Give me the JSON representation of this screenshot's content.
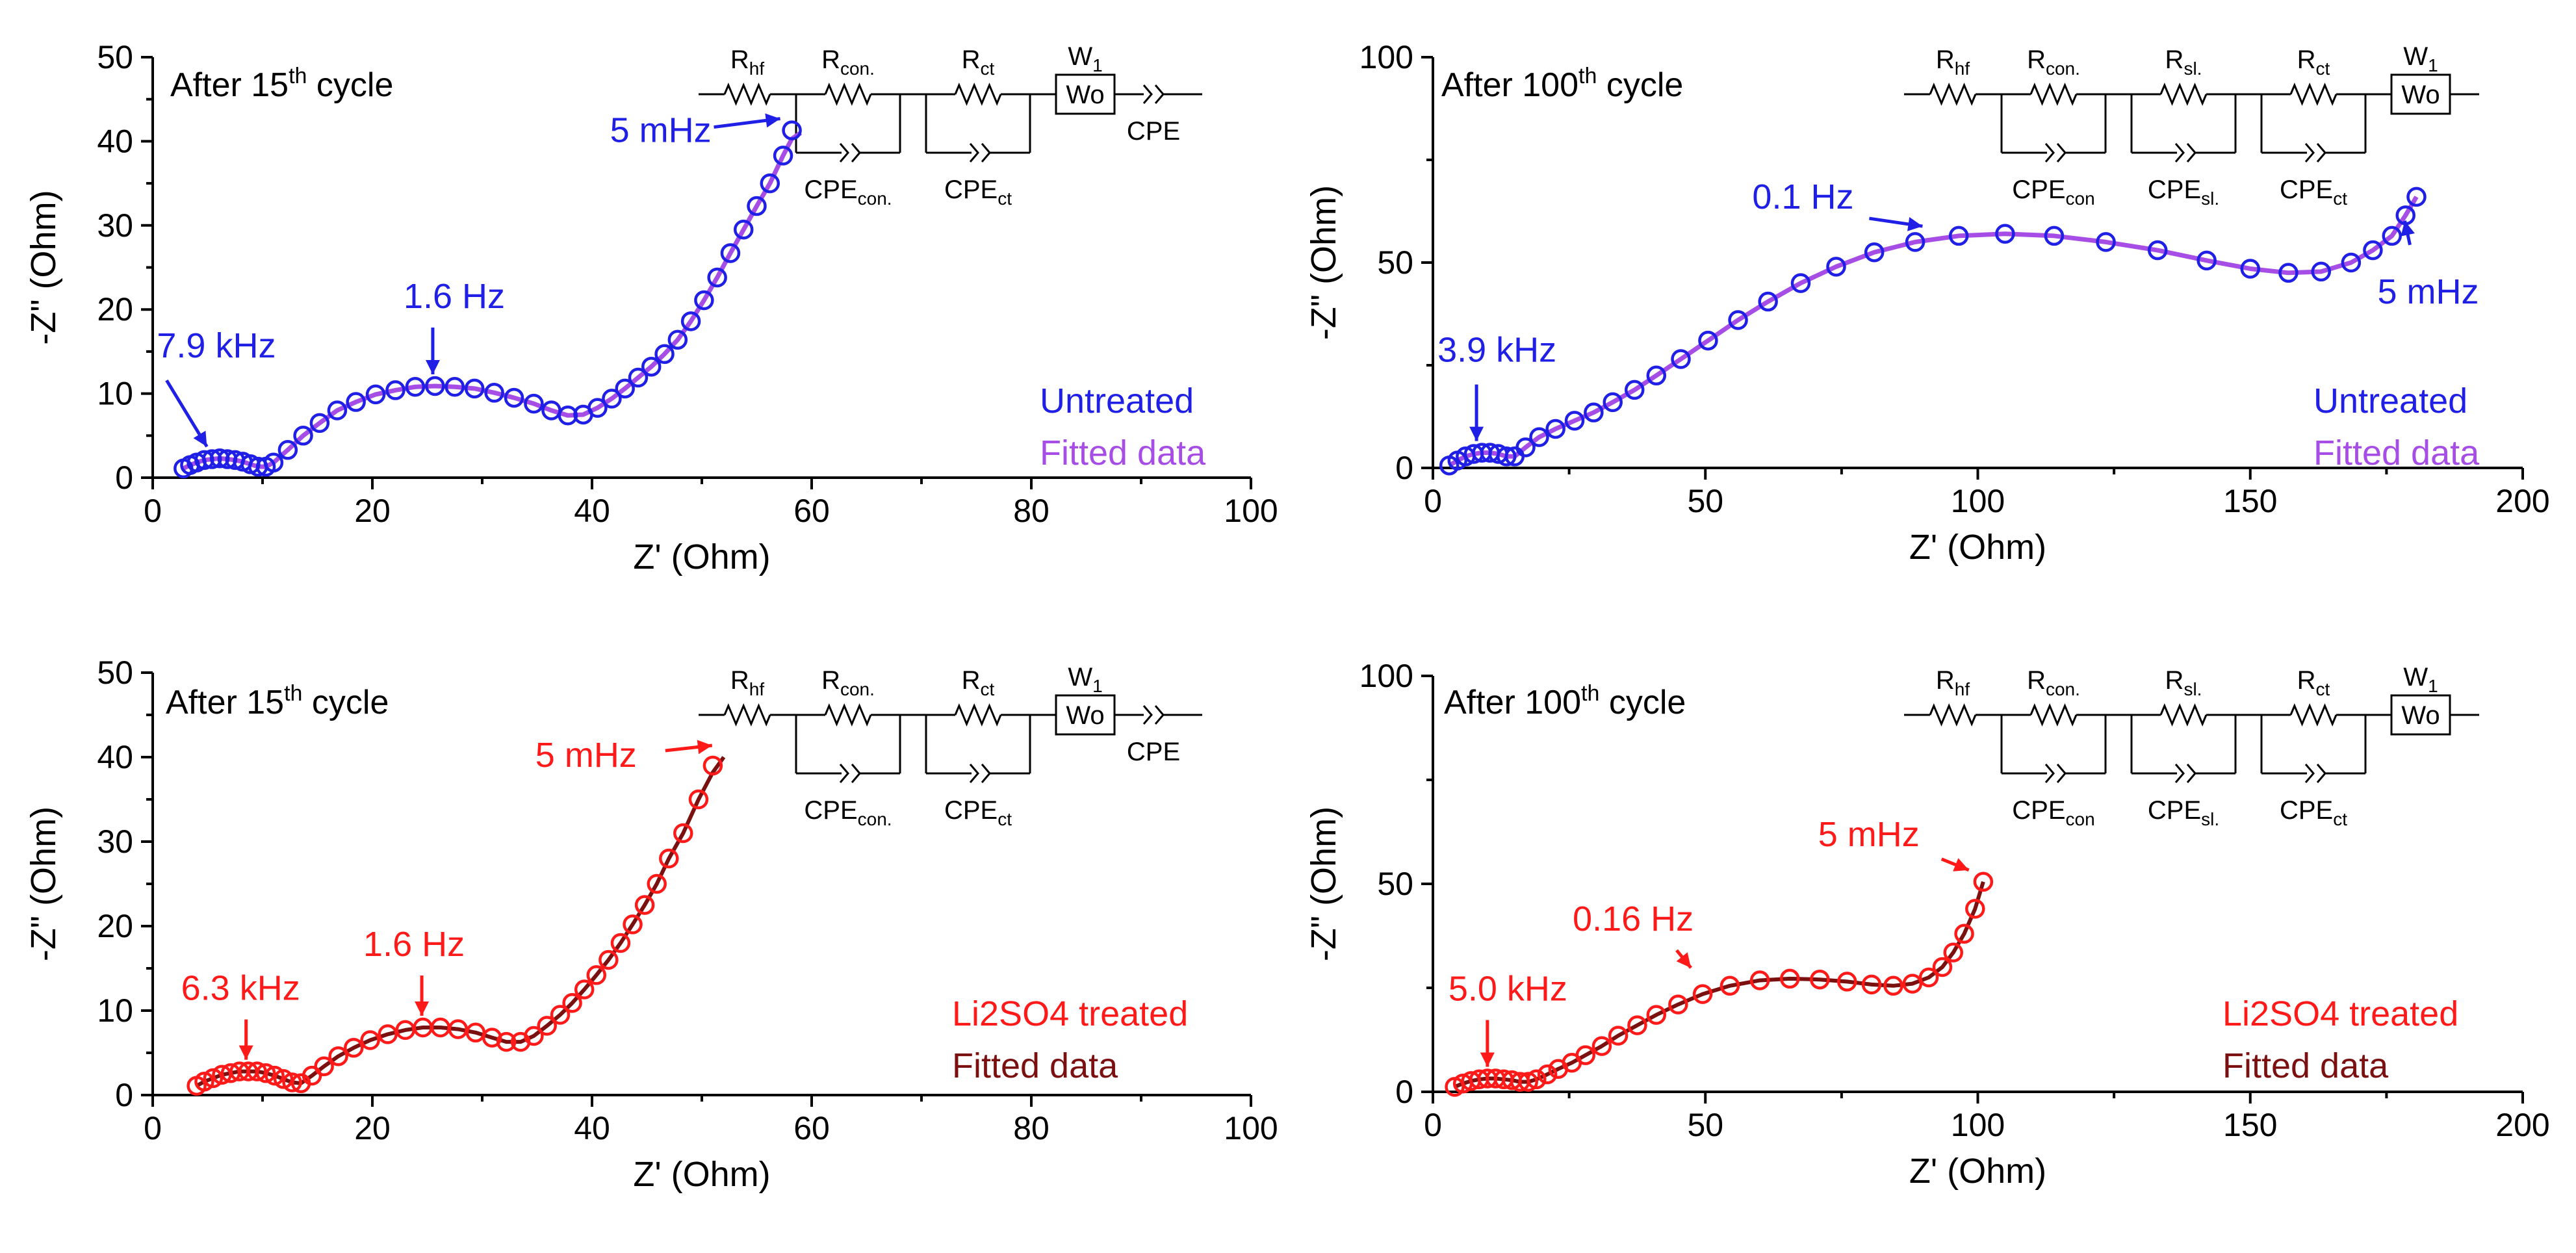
{
  "colors": {
    "untreated_marker": "#1f1fe6",
    "untreated_fit": "#a64de6",
    "treated_marker": "#ff1a1a",
    "treated_fit": "#7a1010"
  },
  "chart_data": [
    {
      "type": "scatter",
      "title": "After 15th cycle",
      "title_main": "After 15",
      "title_sup": "th",
      "title_rest": " cycle",
      "xlabel": "Z' (Ohm)",
      "ylabel": "-Z\" (Ohm)",
      "xlim": [
        0,
        100
      ],
      "ylim": [
        0,
        50
      ],
      "xticks": [
        0,
        20,
        40,
        60,
        80,
        100
      ],
      "yticks": [
        0,
        10,
        20,
        30,
        40,
        50
      ],
      "xticklabels": [
        "0",
        "20",
        "40",
        "60",
        "80",
        "100"
      ],
      "yticklabels": [
        "0",
        "10",
        "20",
        "30",
        "40",
        "50"
      ],
      "series": [
        {
          "name": "Untreated",
          "role": "marker",
          "x": [
            2.8,
            3.4,
            4.0,
            4.7,
            5.4,
            6.1,
            6.8,
            7.5,
            8.2,
            8.9,
            9.6,
            10.3,
            11.0,
            12.3,
            13.7,
            15.2,
            16.8,
            18.5,
            20.3,
            22.1,
            23.9,
            25.7,
            27.5,
            29.3,
            31.1,
            32.9,
            34.7,
            36.3,
            37.8,
            39.2,
            40.5,
            41.8,
            43.0,
            44.2,
            45.4,
            46.6,
            47.8,
            49.0,
            50.2,
            51.4,
            52.6,
            53.8,
            55.0,
            56.2,
            57.4,
            58.2
          ],
          "y": [
            1.1,
            1.5,
            1.8,
            2.1,
            2.2,
            2.3,
            2.2,
            2.1,
            1.9,
            1.6,
            1.3,
            1.3,
            1.8,
            3.3,
            5.0,
            6.5,
            8.0,
            9.0,
            9.9,
            10.4,
            10.8,
            10.9,
            10.8,
            10.6,
            10.1,
            9.5,
            8.8,
            8.0,
            7.4,
            7.5,
            8.3,
            9.4,
            10.6,
            11.9,
            13.2,
            14.7,
            16.4,
            18.6,
            21.1,
            23.8,
            26.7,
            29.5,
            32.3,
            35.0,
            38.3,
            41.3
          ]
        },
        {
          "name": "Fitted data",
          "role": "fit",
          "x": [
            2.8,
            3.4,
            4.0,
            4.7,
            5.4,
            6.1,
            6.8,
            7.5,
            8.2,
            8.9,
            9.6,
            10.3,
            11.0,
            12.3,
            13.7,
            15.2,
            16.8,
            18.5,
            20.3,
            22.1,
            23.9,
            25.7,
            27.5,
            29.3,
            31.1,
            32.9,
            34.7,
            36.3,
            37.8,
            39.2,
            40.5,
            41.8,
            43.0,
            44.2,
            45.4,
            46.6,
            47.8,
            49.0,
            50.2,
            51.4,
            52.6,
            53.8,
            55.0,
            56.2,
            57.4,
            58.2,
            59.0
          ],
          "y": [
            1.1,
            1.5,
            1.8,
            2.1,
            2.2,
            2.3,
            2.2,
            2.1,
            1.9,
            1.6,
            1.3,
            1.3,
            1.8,
            3.3,
            5.0,
            6.5,
            8.0,
            9.0,
            9.9,
            10.4,
            10.8,
            10.9,
            10.8,
            10.6,
            10.1,
            9.5,
            8.8,
            8.0,
            7.4,
            7.5,
            8.3,
            9.4,
            10.6,
            11.9,
            13.2,
            14.7,
            16.4,
            18.6,
            21.1,
            23.8,
            26.7,
            29.5,
            32.3,
            35.0,
            38.3,
            40.3,
            41.0
          ]
        }
      ],
      "legend": [
        "Untreated",
        "Fitted data"
      ],
      "annotations": [
        {
          "text": "7.9 kHz",
          "x": 6.0,
          "y": 2.3
        },
        {
          "text": "1.6 Hz",
          "x": 25.5,
          "y": 10.9
        },
        {
          "text": "5 mHz",
          "x": 58.2,
          "y": 41.3
        }
      ],
      "circuit": {
        "Rhf": "R",
        "Rhf_sub": "hf",
        "Rcon": "R",
        "Rcon_sub": "con.",
        "Rct": "R",
        "Rct_sub": "ct",
        "W": "W",
        "W_sub": "1",
        "Wo": "Wo",
        "CPEcon": "CPE",
        "CPEcon_sub": "con.",
        "CPEct": "CPE",
        "CPEct_sub": "ct",
        "CPE": "CPE"
      }
    },
    {
      "type": "scatter",
      "title": "After 100th cycle",
      "title_main": "After 100",
      "title_sup": "th",
      "title_rest": " cycle",
      "xlabel": "Z' (Ohm)",
      "ylabel": "-Z\" (Ohm)",
      "xlim": [
        0,
        200
      ],
      "ylim": [
        0,
        100
      ],
      "xticks": [
        0,
        50,
        100,
        150,
        200
      ],
      "yticks": [
        0,
        50,
        100
      ],
      "xticklabels": [
        "0",
        "50",
        "100",
        "150",
        "200"
      ],
      "yticklabels": [
        "0",
        "50",
        "100"
      ],
      "series": [
        {
          "name": "Untreated",
          "role": "marker",
          "x": [
            3,
            4.5,
            6,
            7.5,
            9,
            10.5,
            12,
            13.5,
            15,
            17,
            19.5,
            22.5,
            26,
            29.5,
            33,
            37,
            41,
            45.5,
            50.5,
            56,
            61.5,
            67.5,
            74,
            81,
            88.5,
            96.5,
            105,
            114,
            123.5,
            133,
            142,
            150,
            157,
            163,
            168.5,
            172.5,
            176,
            178.5,
            180.5
          ],
          "y": [
            0.6,
            1.8,
            2.8,
            3.4,
            3.7,
            3.7,
            3.4,
            2.8,
            2.8,
            5.0,
            7.5,
            9.5,
            11.5,
            13.5,
            16.0,
            19.0,
            22.5,
            26.5,
            31.0,
            36.0,
            40.5,
            45.0,
            49.0,
            52.5,
            55.0,
            56.5,
            57.0,
            56.5,
            55.0,
            53.0,
            50.5,
            48.5,
            47.5,
            47.8,
            50.0,
            53.0,
            56.5,
            61.5,
            66.0
          ]
        },
        {
          "name": "Fitted data",
          "role": "fit",
          "x": [
            3,
            4.5,
            6,
            7.5,
            9,
            10.5,
            12,
            13.5,
            15,
            17,
            19.5,
            22.5,
            26,
            29.5,
            33,
            37,
            41,
            45.5,
            50.5,
            56,
            61.5,
            67.5,
            74,
            81,
            88.5,
            96.5,
            105,
            114,
            123.5,
            133,
            142,
            150,
            157,
            163,
            168.5,
            172.5,
            176,
            178.5,
            180.5
          ],
          "y": [
            0.6,
            1.8,
            2.8,
            3.4,
            3.7,
            3.7,
            3.4,
            2.8,
            2.8,
            5.0,
            7.5,
            9.5,
            11.5,
            13.5,
            16.0,
            19.0,
            22.5,
            26.5,
            31.0,
            36.0,
            40.5,
            45.0,
            49.0,
            52.5,
            55.0,
            56.5,
            57.0,
            56.5,
            55.0,
            53.0,
            50.5,
            48.5,
            47.5,
            47.8,
            50.0,
            53.0,
            56.5,
            61.5,
            66.0
          ]
        }
      ],
      "legend": [
        "Untreated",
        "Fitted data"
      ],
      "annotations": [
        {
          "text": "3.9 kHz",
          "x": 8.0,
          "y": 3.7
        },
        {
          "text": "0.1 Hz",
          "x": 92.0,
          "y": 56.0
        },
        {
          "text": "5 mHz",
          "x": 180.5,
          "y": 63.0
        }
      ],
      "circuit": {
        "Rhf": "R",
        "Rhf_sub": "hf",
        "Rcon": "R",
        "Rcon_sub": "con.",
        "Rsl": "R",
        "Rsl_sub": "sl.",
        "Rct": "R",
        "Rct_sub": "ct",
        "W": "W",
        "W_sub": "1",
        "Wo": "Wo",
        "CPEcon": "CPE",
        "CPEcon_sub": "con",
        "CPEsl": "CPE",
        "CPEsl_sub": "sl.",
        "CPEct": "CPE",
        "CPEct_sub": "ct"
      }
    },
    {
      "type": "scatter",
      "title": "After 15th cycle",
      "title_main": "After 15",
      "title_sup": "th",
      "title_rest": " cycle",
      "xlabel": "Z' (Ohm)",
      "ylabel": "-Z\" (Ohm)",
      "xlim": [
        0,
        100
      ],
      "ylim": [
        0,
        50
      ],
      "xticks": [
        0,
        20,
        40,
        60,
        80,
        100
      ],
      "yticks": [
        0,
        10,
        20,
        30,
        40,
        50
      ],
      "xticklabels": [
        "0",
        "20",
        "40",
        "60",
        "80",
        "100"
      ],
      "yticklabels": [
        "0",
        "10",
        "20",
        "30",
        "40",
        "50"
      ],
      "series": [
        {
          "name": "Li2SO4 treated",
          "role": "marker",
          "x": [
            4.0,
            4.7,
            5.5,
            6.3,
            7.1,
            7.9,
            8.7,
            9.5,
            10.3,
            11.1,
            11.9,
            12.7,
            13.5,
            14.5,
            15.6,
            16.9,
            18.3,
            19.8,
            21.4,
            23.0,
            24.6,
            26.2,
            27.8,
            29.4,
            30.9,
            32.2,
            33.5,
            34.7,
            35.9,
            37.1,
            38.2,
            39.3,
            40.4,
            41.5,
            42.6,
            43.7,
            44.8,
            45.9,
            47.0,
            48.3,
            49.7,
            51.0
          ],
          "y": [
            1.1,
            1.6,
            2.0,
            2.4,
            2.6,
            2.8,
            2.8,
            2.8,
            2.6,
            2.3,
            1.9,
            1.5,
            1.4,
            2.3,
            3.4,
            4.6,
            5.6,
            6.5,
            7.2,
            7.7,
            8.0,
            8.0,
            7.8,
            7.4,
            6.8,
            6.3,
            6.3,
            7.0,
            8.2,
            9.5,
            10.9,
            12.5,
            14.2,
            16.0,
            18.0,
            20.2,
            22.5,
            25.0,
            28.0,
            31.0,
            35.0,
            39.0
          ]
        },
        {
          "name": "Fitted data",
          "role": "fit",
          "x": [
            4.0,
            4.7,
            5.5,
            6.3,
            7.1,
            7.9,
            8.7,
            9.5,
            10.3,
            11.1,
            11.9,
            12.7,
            13.5,
            14.5,
            15.6,
            16.9,
            18.3,
            19.8,
            21.4,
            23.0,
            24.6,
            26.2,
            27.8,
            29.4,
            30.9,
            32.2,
            33.5,
            34.7,
            35.9,
            37.1,
            38.2,
            39.3,
            40.4,
            41.5,
            42.6,
            43.7,
            44.8,
            45.9,
            47.0,
            48.3,
            49.7,
            51.0,
            52.0
          ],
          "y": [
            1.1,
            1.6,
            2.0,
            2.4,
            2.6,
            2.8,
            2.8,
            2.8,
            2.6,
            2.3,
            1.9,
            1.5,
            1.4,
            2.3,
            3.4,
            4.6,
            5.6,
            6.5,
            7.2,
            7.7,
            8.0,
            8.0,
            7.8,
            7.4,
            6.8,
            6.3,
            6.3,
            7.0,
            8.2,
            9.5,
            10.9,
            12.5,
            14.2,
            16.0,
            18.0,
            20.2,
            22.5,
            25.0,
            28.0,
            31.0,
            35.0,
            38.2,
            40.0
          ]
        }
      ],
      "legend": [
        "Li2SO4 treated",
        "Fitted data"
      ],
      "annotations": [
        {
          "text": "6.3 kHz",
          "x": 8.5,
          "y": 2.8
        },
        {
          "text": "1.6 Hz",
          "x": 24.5,
          "y": 8.0
        },
        {
          "text": "5 mHz",
          "x": 52.0,
          "y": 40.0
        }
      ],
      "circuit": {
        "Rhf": "R",
        "Rhf_sub": "hf",
        "Rcon": "R",
        "Rcon_sub": "con.",
        "Rct": "R",
        "Rct_sub": "ct",
        "W": "W",
        "W_sub": "1",
        "Wo": "Wo",
        "CPEcon": "CPE",
        "CPEcon_sub": "con.",
        "CPEct": "CPE",
        "CPEct_sub": "ct",
        "CPE": "CPE"
      }
    },
    {
      "type": "scatter",
      "title": "After 100th cycle",
      "title_main": "After 100",
      "title_sup": "th",
      "title_rest": " cycle",
      "xlabel": "Z' (Ohm)",
      "ylabel": "-Z\" (Ohm)",
      "xlim": [
        0,
        200
      ],
      "ylim": [
        0,
        100
      ],
      "xticks": [
        0,
        50,
        100,
        150,
        200
      ],
      "yticks": [
        0,
        50,
        100
      ],
      "xticklabels": [
        "0",
        "50",
        "100",
        "150",
        "200"
      ],
      "yticklabels": [
        "0",
        "50",
        "100"
      ],
      "series": [
        {
          "name": "Li2SO4 treated",
          "role": "marker",
          "x": [
            4,
            5.5,
            7,
            8.5,
            10,
            11.5,
            13,
            14.5,
            16,
            17.5,
            19,
            21,
            23,
            25.5,
            28,
            31,
            34,
            37.5,
            41,
            45,
            49.5,
            54.5,
            60,
            65.5,
            71,
            76,
            80.5,
            84.5,
            88,
            91,
            93.5,
            95.5,
            97.5,
            99.5,
            101
          ],
          "y": [
            1.2,
            2.0,
            2.6,
            3.0,
            3.2,
            3.2,
            3.0,
            2.8,
            2.4,
            2.4,
            3.0,
            4.2,
            5.5,
            7.0,
            8.8,
            11.0,
            13.5,
            16.0,
            18.5,
            21.0,
            23.5,
            25.5,
            26.8,
            27.2,
            27.0,
            26.5,
            25.8,
            25.5,
            26.0,
            27.5,
            30.0,
            33.5,
            38.0,
            44.0,
            50.5
          ]
        },
        {
          "name": "Fitted data",
          "role": "fit",
          "x": [
            4,
            5.5,
            7,
            8.5,
            10,
            11.5,
            13,
            14.5,
            16,
            17.5,
            19,
            21,
            23,
            25.5,
            28,
            31,
            34,
            37.5,
            41,
            45,
            49.5,
            54.5,
            60,
            65.5,
            71,
            76,
            80.5,
            84.5,
            88,
            91,
            93.5,
            95.5,
            97.5,
            99.5,
            101
          ],
          "y": [
            1.2,
            2.0,
            2.6,
            3.0,
            3.2,
            3.2,
            3.0,
            2.8,
            2.4,
            2.4,
            3.0,
            4.2,
            5.5,
            7.0,
            8.8,
            11.0,
            13.5,
            16.0,
            18.5,
            21.0,
            23.5,
            25.5,
            26.8,
            27.2,
            27.0,
            26.5,
            25.8,
            25.5,
            26.0,
            27.5,
            30.0,
            33.5,
            38.0,
            44.0,
            50.5
          ]
        }
      ],
      "legend": [
        "Li2SO4 treated",
        "Fitted data"
      ],
      "annotations": [
        {
          "text": "5.0 kHz",
          "x": 10.0,
          "y": 3.2
        },
        {
          "text": "0.16 Hz",
          "x": 49.5,
          "y": 27.0
        },
        {
          "text": "5 mHz",
          "x": 100.5,
          "y": 50.5
        }
      ],
      "circuit": {
        "Rhf": "R",
        "Rhf_sub": "hf",
        "Rcon": "R",
        "Rcon_sub": "con.",
        "Rsl": "R",
        "Rsl_sub": "sl.",
        "Rct": "R",
        "Rct_sub": "ct",
        "W": "W",
        "W_sub": "1",
        "Wo": "Wo",
        "CPEcon": "CPE",
        "CPEcon_sub": "con",
        "CPEsl": "CPE",
        "CPEsl_sub": "sl.",
        "CPEct": "CPE",
        "CPEct_sub": "ct"
      }
    }
  ]
}
